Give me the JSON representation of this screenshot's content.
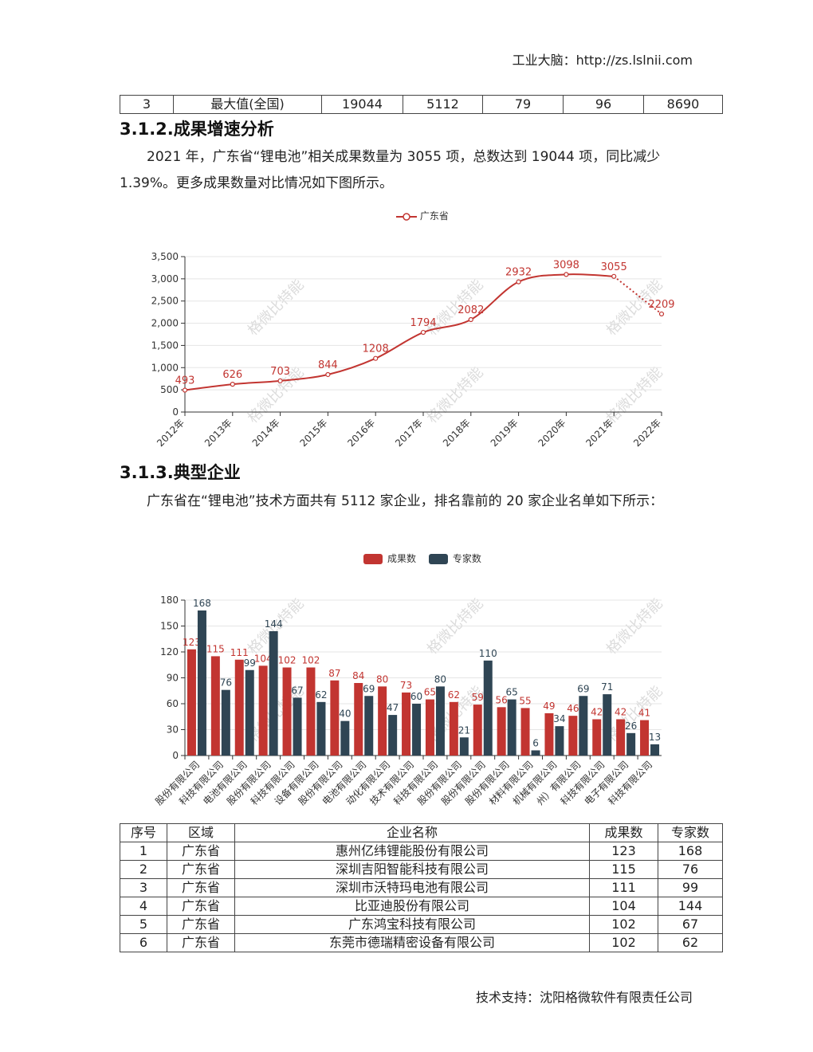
{
  "header": {
    "text": "工业大脑：http://zs.lslnii.com"
  },
  "top_table": {
    "row": [
      "3",
      "最大值(全国)",
      "19044",
      "5112",
      "79",
      "96",
      "8690"
    ]
  },
  "section_growth": {
    "title": "3.1.2.成果增速分析",
    "paragraph": "2021 年，广东省“锂电池”相关成果数量为 3055 项，总数达到 19044 项，同比减少 1.39%。更多成果数量对比情况如下图所示。"
  },
  "section_company": {
    "title": "3.1.3.典型企业",
    "paragraph": "广东省在“锂电池”技术方面共有 5112 家企业，排名靠前的 20 家企业名单如下所示："
  },
  "watermark": "格微比特能",
  "chart_data": [
    {
      "type": "line",
      "legend": [
        "广东省"
      ],
      "legend_position": "top-center",
      "x": [
        "2012年",
        "2013年",
        "2014年",
        "2015年",
        "2016年",
        "2017年",
        "2018年",
        "2019年",
        "2020年",
        "2021年",
        "2022年"
      ],
      "series": [
        {
          "name": "广东省",
          "values": [
            493,
            626,
            703,
            844,
            1208,
            1794,
            2082,
            2932,
            3098,
            3055,
            2209
          ]
        }
      ],
      "ylim": [
        0,
        3500
      ],
      "yticks": [
        "0",
        "500",
        "1,000",
        "1,500",
        "2,000",
        "2,500",
        "3,000",
        "3,500"
      ],
      "grid": true,
      "color": "#c23531"
    },
    {
      "type": "bar",
      "legend": [
        "成果数",
        "专家数"
      ],
      "legend_position": "top-center",
      "categories": [
        "股份有限公司",
        "科技有限公司",
        "电池有限公司",
        "股份有限公司",
        "科技有限公司",
        "设备有限公司",
        "股份有限公司",
        "电池有限公司",
        "动化有限公司",
        "技术有限公司",
        "科技有限公司",
        "股份有限公司",
        "股份有限公司",
        "股份有限公司",
        "材料有限公司",
        "机械有限公司",
        "州）有限公司",
        "科技有限公司",
        "电子有限公司",
        "科技有限公司"
      ],
      "series": [
        {
          "name": "成果数",
          "values": [
            123,
            115,
            111,
            104,
            102,
            102,
            87,
            84,
            80,
            73,
            65,
            62,
            59,
            56,
            55,
            49,
            46,
            42,
            42,
            41
          ],
          "color": "#c23531"
        },
        {
          "name": "专家数",
          "values": [
            168,
            76,
            99,
            144,
            67,
            62,
            40,
            69,
            47,
            60,
            80,
            21,
            110,
            65,
            6,
            34,
            69,
            71,
            26,
            13
          ],
          "color": "#2f4554"
        }
      ],
      "ylim": [
        0,
        180
      ],
      "yticks": [
        "0",
        "30",
        "60",
        "90",
        "120",
        "150",
        "180"
      ],
      "grid": true
    }
  ],
  "company_table": {
    "headers": [
      "序号",
      "区域",
      "企业名称",
      "成果数",
      "专家数"
    ],
    "rows": [
      [
        "1",
        "广东省",
        "惠州亿纬锂能股份有限公司",
        "123",
        "168"
      ],
      [
        "2",
        "广东省",
        "深圳吉阳智能科技有限公司",
        "115",
        "76"
      ],
      [
        "3",
        "广东省",
        "深圳市沃特玛电池有限公司",
        "111",
        "99"
      ],
      [
        "4",
        "广东省",
        "比亚迪股份有限公司",
        "104",
        "144"
      ],
      [
        "5",
        "广东省",
        "广东鸿宝科技有限公司",
        "102",
        "67"
      ],
      [
        "6",
        "广东省",
        "东莞市德瑞精密设备有限公司",
        "102",
        "62"
      ]
    ]
  },
  "footer": {
    "text": "技术支持：沈阳格微软件有限责任公司"
  }
}
